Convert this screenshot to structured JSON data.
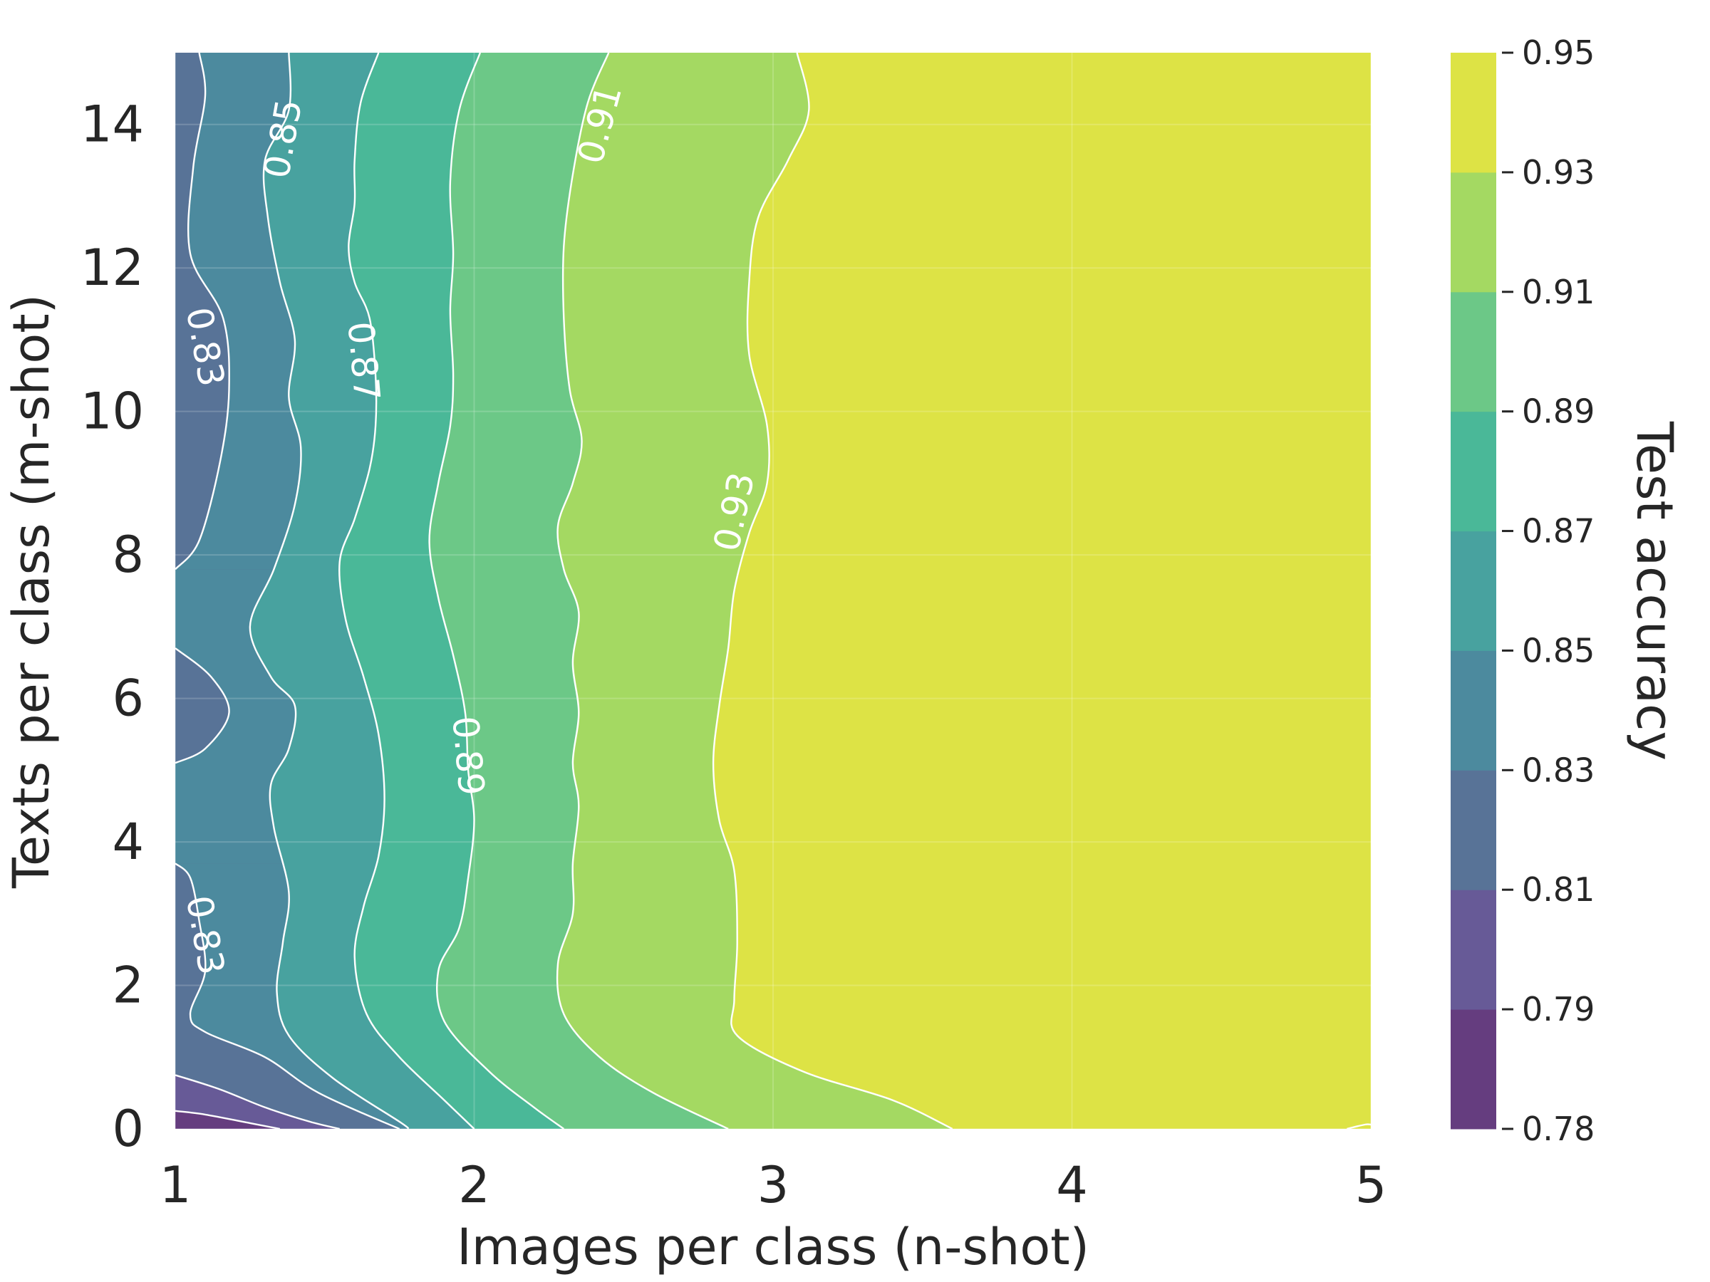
{
  "chart_data": {
    "type": "contour",
    "xlabel": "Images per class (n-shot)",
    "ylabel": "Texts per class (m-shot)",
    "x_ticks": [
      "1",
      "2",
      "3",
      "4",
      "5"
    ],
    "y_ticks": [
      "0",
      "2",
      "4",
      "6",
      "8",
      "10",
      "12",
      "14"
    ],
    "xlim": [
      1,
      5
    ],
    "ylim": [
      0,
      15
    ],
    "colorbar": {
      "label": "Test accuracy",
      "ticks": [
        "0.78",
        "0.79",
        "0.81",
        "0.83",
        "0.85",
        "0.87",
        "0.89",
        "0.91",
        "0.93",
        "0.95"
      ],
      "levels": [
        0.78,
        0.79,
        0.81,
        0.83,
        0.85,
        0.87,
        0.89,
        0.91,
        0.93,
        0.95
      ],
      "band_colors": [
        "#653d7f",
        "#675a97",
        "#587397",
        "#4c8a9e",
        "#48a29f",
        "#4ab898",
        "#6cc887",
        "#a4d962",
        "#dde345"
      ]
    },
    "contour_lines": [
      {
        "level": "0.79",
        "points": [
          [
            1,
            0.25
          ],
          [
            1.1,
            0.2
          ],
          [
            1.25,
            0.08
          ],
          [
            1.35,
            0
          ]
        ]
      },
      {
        "level": "0.81",
        "points": [
          [
            1,
            0.75
          ],
          [
            1.15,
            0.55
          ],
          [
            1.3,
            0.3
          ],
          [
            1.45,
            0.1
          ],
          [
            1.55,
            0
          ]
        ]
      },
      {
        "level": "0.83",
        "points": [
          [
            1,
            7.8
          ],
          [
            1.08,
            8.2
          ],
          [
            1.15,
            9.3
          ],
          [
            1.18,
            10.3
          ],
          [
            1.16,
            11.3
          ],
          [
            1.05,
            12.2
          ],
          [
            1.06,
            13.4
          ],
          [
            1.1,
            14.4
          ],
          [
            1.08,
            15
          ]
        ]
      },
      {
        "level": "0.83",
        "points": [
          [
            1,
            6.7
          ],
          [
            1.12,
            6.3
          ],
          [
            1.18,
            5.8
          ],
          [
            1.1,
            5.3
          ],
          [
            1,
            5.1
          ]
        ]
      },
      {
        "level": "0.83",
        "points": [
          [
            1,
            3.7
          ],
          [
            1.05,
            3.5
          ],
          [
            1.08,
            2.9
          ],
          [
            1.1,
            2.2
          ],
          [
            1.05,
            1.6
          ],
          [
            1.1,
            1.35
          ],
          [
            1.3,
            1
          ],
          [
            1.48,
            0.5
          ],
          [
            1.75,
            0
          ]
        ]
      },
      {
        "level": "0.85",
        "points": [
          [
            1.38,
            15
          ],
          [
            1.38,
            14.2
          ],
          [
            1.3,
            13.5
          ],
          [
            1.31,
            12.7
          ],
          [
            1.35,
            11.8
          ],
          [
            1.4,
            11
          ],
          [
            1.38,
            10.2
          ],
          [
            1.42,
            9.5
          ],
          [
            1.4,
            8.7
          ],
          [
            1.33,
            7.8
          ],
          [
            1.25,
            7
          ],
          [
            1.32,
            6.3
          ],
          [
            1.4,
            5.9
          ],
          [
            1.38,
            5.3
          ],
          [
            1.32,
            4.8
          ],
          [
            1.33,
            4.2
          ],
          [
            1.38,
            3.3
          ],
          [
            1.36,
            2.6
          ],
          [
            1.34,
            1.9
          ],
          [
            1.38,
            1.3
          ],
          [
            1.53,
            0.7
          ],
          [
            1.75,
            0.1
          ],
          [
            1.78,
            0
          ]
        ]
      },
      {
        "level": "0.87",
        "points": [
          [
            1.68,
            15
          ],
          [
            1.62,
            14.3
          ],
          [
            1.6,
            13.5
          ],
          [
            1.6,
            12.9
          ],
          [
            1.58,
            12.3
          ],
          [
            1.6,
            11.8
          ],
          [
            1.65,
            11.3
          ],
          [
            1.67,
            10.5
          ],
          [
            1.67,
            9.8
          ],
          [
            1.65,
            9.2
          ],
          [
            1.6,
            8.5
          ],
          [
            1.55,
            7.9
          ],
          [
            1.57,
            7.1
          ],
          [
            1.63,
            6.3
          ],
          [
            1.68,
            5.5
          ],
          [
            1.7,
            4.6
          ],
          [
            1.68,
            3.8
          ],
          [
            1.63,
            3.1
          ],
          [
            1.6,
            2.4
          ],
          [
            1.64,
            1.6
          ],
          [
            1.75,
            1
          ],
          [
            1.9,
            0.4
          ],
          [
            2.0,
            0
          ]
        ]
      },
      {
        "level": "0.89",
        "points": [
          [
            2.02,
            15
          ],
          [
            1.95,
            14.2
          ],
          [
            1.92,
            13.2
          ],
          [
            1.93,
            12.2
          ],
          [
            1.92,
            11.4
          ],
          [
            1.93,
            10.5
          ],
          [
            1.92,
            9.8
          ],
          [
            1.88,
            9
          ],
          [
            1.85,
            8.2
          ],
          [
            1.88,
            7.4
          ],
          [
            1.93,
            6.6
          ],
          [
            1.97,
            5.8
          ],
          [
            1.98,
            5
          ],
          [
            2.0,
            4.3
          ],
          [
            1.98,
            3.5
          ],
          [
            1.95,
            2.8
          ],
          [
            1.88,
            2.2
          ],
          [
            1.9,
            1.5
          ],
          [
            2.05,
            0.8
          ],
          [
            2.2,
            0.3
          ],
          [
            2.3,
            0
          ]
        ]
      },
      {
        "level": "0.91",
        "points": [
          [
            2.45,
            15
          ],
          [
            2.38,
            14.3
          ],
          [
            2.33,
            13.3
          ],
          [
            2.3,
            12.3
          ],
          [
            2.3,
            11.3
          ],
          [
            2.32,
            10.3
          ],
          [
            2.36,
            9.6
          ],
          [
            2.33,
            9
          ],
          [
            2.28,
            8.4
          ],
          [
            2.3,
            7.8
          ],
          [
            2.35,
            7.2
          ],
          [
            2.33,
            6.5
          ],
          [
            2.35,
            5.8
          ],
          [
            2.33,
            5.1
          ],
          [
            2.35,
            4.5
          ],
          [
            2.33,
            3.7
          ],
          [
            2.33,
            3.0
          ],
          [
            2.28,
            2.3
          ],
          [
            2.3,
            1.6
          ],
          [
            2.42,
            1
          ],
          [
            2.6,
            0.5
          ],
          [
            2.85,
            0
          ]
        ]
      },
      {
        "level": "0.93",
        "points": [
          [
            3.08,
            15
          ],
          [
            3.12,
            14.2
          ],
          [
            3.05,
            13.5
          ],
          [
            2.95,
            12.7
          ],
          [
            2.92,
            11.8
          ],
          [
            2.92,
            10.8
          ],
          [
            2.98,
            9.8
          ],
          [
            2.98,
            9
          ],
          [
            2.92,
            8.3
          ],
          [
            2.87,
            7.5
          ],
          [
            2.85,
            6.7
          ],
          [
            2.82,
            5.9
          ],
          [
            2.8,
            5.1
          ],
          [
            2.82,
            4.3
          ],
          [
            2.87,
            3.6
          ],
          [
            2.88,
            2.6
          ],
          [
            2.87,
            1.8
          ],
          [
            2.88,
            1.3
          ],
          [
            3.1,
            0.8
          ],
          [
            3.4,
            0.4
          ],
          [
            3.6,
            0
          ]
        ]
      },
      {
        "level": "0.95",
        "points": [
          [
            4.92,
            0
          ],
          [
            4.98,
            0.06
          ],
          [
            5,
            0.06
          ]
        ]
      }
    ],
    "contour_labels": [
      {
        "text": "0.83",
        "x": 1.1,
        "y": 10.9,
        "rotation": 80
      },
      {
        "text": "0.83",
        "x": 1.1,
        "y": 2.7,
        "rotation": 80
      },
      {
        "text": "0.85",
        "x": 1.36,
        "y": 13.8,
        "rotation": -80
      },
      {
        "text": "0.87",
        "x": 1.63,
        "y": 10.7,
        "rotation": 85
      },
      {
        "text": "0.89",
        "x": 1.98,
        "y": 5.2,
        "rotation": 85
      },
      {
        "text": "0.91",
        "x": 2.42,
        "y": 14.0,
        "rotation": -75
      },
      {
        "text": "0.93",
        "x": 2.87,
        "y": 8.6,
        "rotation": -78
      }
    ],
    "grid": true
  }
}
